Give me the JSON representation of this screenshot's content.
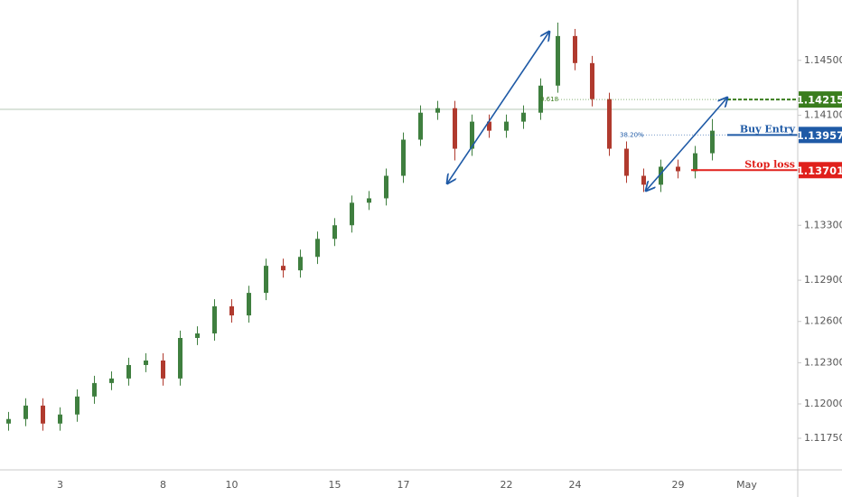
{
  "chart_data": {
    "type": "candlestick",
    "categories": [
      null,
      null,
      null,
      "3",
      null,
      null,
      null,
      null,
      null,
      "8",
      null,
      null,
      null,
      "10",
      null,
      null,
      null,
      null,
      null,
      "15",
      null,
      null,
      null,
      "17",
      null,
      null,
      null,
      null,
      null,
      "22",
      null,
      null,
      null,
      "24",
      null,
      null,
      null,
      null,
      null,
      "29",
      null,
      null,
      null,
      "May",
      null,
      null
    ],
    "open": [
      1.11857,
      1.1189,
      1.11988,
      1.11857,
      1.11923,
      1.12054,
      1.12152,
      1.12185,
      1.12283,
      1.12316,
      1.12185,
      1.1248,
      1.12513,
      1.1271,
      1.12644,
      1.12808,
      1.13005,
      1.12972,
      1.1307,
      1.13201,
      1.133,
      1.13464,
      1.13496,
      1.1366,
      1.13923,
      1.14119,
      1.14152,
      1.13857,
      1.14054,
      1.13988,
      1.14054,
      1.14119,
      1.14316,
      1.14677,
      1.1448,
      1.14218,
      1.13857,
      1.1366,
      1.13595,
      1.13726,
      1.13693,
      1.13824,
      null,
      null,
      null,
      null
    ],
    "high": [
      1.11942,
      1.12041,
      1.12041,
      1.11975,
      1.12106,
      1.12205,
      1.12237,
      1.12336,
      1.12369,
      1.12369,
      1.12533,
      1.12565,
      1.12762,
      1.12762,
      1.1286,
      1.13057,
      1.13057,
      1.13123,
      1.13254,
      1.13352,
      1.13516,
      1.13549,
      1.13713,
      1.13975,
      1.14172,
      1.14205,
      1.14205,
      1.14106,
      1.14106,
      1.14106,
      1.14172,
      1.14369,
      1.14775,
      1.14729,
      1.14532,
      1.14264,
      1.1391,
      1.13713,
      1.13778,
      1.13778,
      1.13877,
      1.14073,
      null,
      null,
      null,
      null
    ],
    "low": [
      1.11805,
      1.11838,
      1.11805,
      1.11805,
      1.1187,
      1.12001,
      1.121,
      1.12133,
      1.12231,
      1.12133,
      1.12133,
      1.12428,
      1.1246,
      1.12592,
      1.12592,
      1.12755,
      1.12919,
      1.12919,
      1.13018,
      1.13149,
      1.13247,
      1.13411,
      1.13444,
      1.13608,
      1.13877,
      1.14067,
      1.13772,
      1.13805,
      1.13936,
      1.13936,
      1.14001,
      1.14067,
      1.14264,
      1.14428,
      1.14165,
      1.13805,
      1.13608,
      1.13542,
      1.13542,
      1.13641,
      1.13641,
      1.13772,
      null,
      null,
      null,
      null
    ],
    "close": [
      1.1189,
      1.11988,
      1.11857,
      1.11923,
      1.12054,
      1.12152,
      1.12185,
      1.12283,
      1.12316,
      1.12185,
      1.1248,
      1.12513,
      1.1271,
      1.12644,
      1.12808,
      1.13005,
      1.12972,
      1.1307,
      1.13201,
      1.133,
      1.13464,
      1.13496,
      1.1366,
      1.13923,
      1.14119,
      1.14152,
      1.13857,
      1.14054,
      1.13988,
      1.14054,
      1.14119,
      1.14316,
      1.14677,
      1.1448,
      1.14218,
      1.13857,
      1.1366,
      1.13595,
      1.13726,
      1.13693,
      1.13824,
      1.13988,
      null,
      null,
      null,
      null
    ],
    "up_color": "#3f7f3f",
    "down_color": "#b03a2e",
    "ylim": [
      1.1152,
      1.14939
    ],
    "yticks": [
      {
        "value": 1.1175,
        "label": "1.11750"
      },
      {
        "value": 1.12,
        "label": "1.12000"
      },
      {
        "value": 1.123,
        "label": "1.12300"
      },
      {
        "value": 1.126,
        "label": "1.12600"
      },
      {
        "value": 1.129,
        "label": "1.12900"
      },
      {
        "value": 1.133,
        "label": "1.13300"
      },
      {
        "value": 1.141,
        "label": "1.14100"
      },
      {
        "value": 1.145,
        "label": "1.14500"
      }
    ],
    "levels": [
      {
        "value": 1.14215,
        "color": "#3a7d1e",
        "fib": "0.618"
      },
      {
        "name": "Buy Entry",
        "value": 1.13957,
        "color": "#1f5aa6",
        "fib": "38.20%"
      },
      {
        "name": "Stop loss",
        "value": 1.13701,
        "color": "#e0201b"
      }
    ]
  }
}
